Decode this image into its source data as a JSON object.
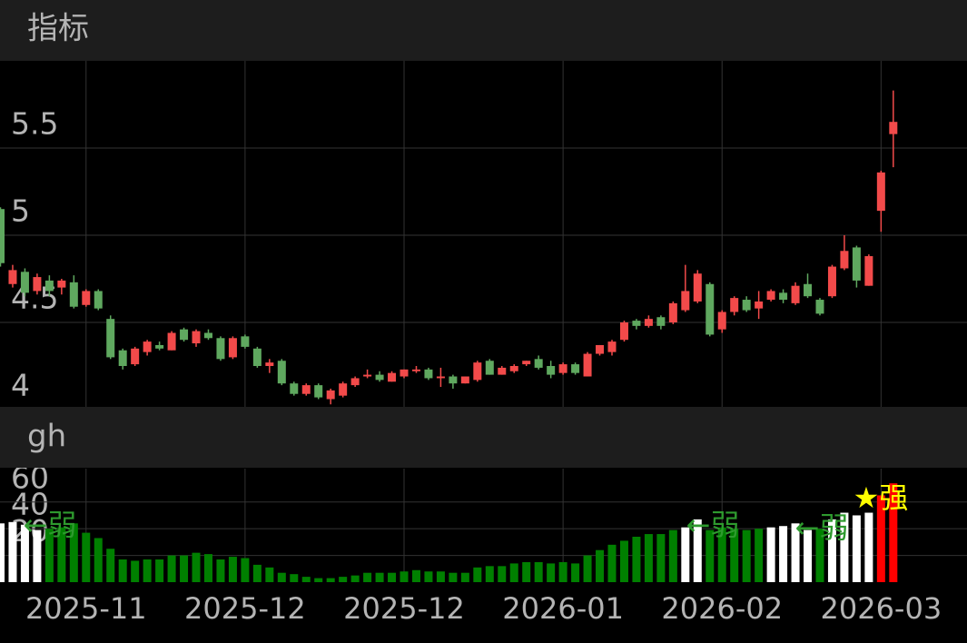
{
  "chart_data": [
    {
      "type": "candlestick",
      "title": "指标",
      "open": [
        5.15,
        4.72,
        4.79,
        4.68,
        4.74,
        4.7,
        4.73,
        4.6,
        4.68,
        4.52,
        4.34,
        4.26,
        4.33,
        4.37,
        4.34,
        4.46,
        4.38,
        4.44,
        4.41,
        4.3,
        4.42,
        4.35,
        4.25,
        4.28,
        4.15,
        4.09,
        4.14,
        4.06,
        4.08,
        4.14,
        4.19,
        4.2,
        4.16,
        4.19,
        4.22,
        4.23,
        4.18,
        4.19,
        4.15,
        4.17,
        4.28,
        4.2,
        4.22,
        4.26,
        4.29,
        4.25,
        4.21,
        4.26,
        4.19,
        4.32,
        4.33,
        4.4,
        4.51,
        4.48,
        4.53,
        4.5,
        4.57,
        4.62,
        4.72,
        4.46,
        4.56,
        4.63,
        4.58,
        4.63,
        4.67,
        4.61,
        4.72,
        4.63,
        4.65,
        4.81,
        4.93,
        4.71,
        5.14,
        5.58
      ],
      "high": [
        5.16,
        4.83,
        4.81,
        4.78,
        4.77,
        4.75,
        4.77,
        4.69,
        4.69,
        4.54,
        4.35,
        4.36,
        4.4,
        4.39,
        4.45,
        4.47,
        4.46,
        4.46,
        4.42,
        4.42,
        4.43,
        4.36,
        4.29,
        4.29,
        4.16,
        4.15,
        4.15,
        4.12,
        4.16,
        4.19,
        4.23,
        4.22,
        4.22,
        4.23,
        4.25,
        4.24,
        4.24,
        4.2,
        4.19,
        4.28,
        4.29,
        4.25,
        4.26,
        4.28,
        4.31,
        4.28,
        4.27,
        4.27,
        4.33,
        4.37,
        4.4,
        4.51,
        4.52,
        4.54,
        4.54,
        4.62,
        4.83,
        4.8,
        4.73,
        4.57,
        4.65,
        4.65,
        4.68,
        4.69,
        4.69,
        4.73,
        4.78,
        4.64,
        4.83,
        5.0,
        4.94,
        4.89,
        5.37,
        5.83
      ],
      "low": [
        4.82,
        4.7,
        4.65,
        4.66,
        4.65,
        4.66,
        4.58,
        4.59,
        4.57,
        4.29,
        4.23,
        4.25,
        4.31,
        4.34,
        4.34,
        4.39,
        4.36,
        4.4,
        4.28,
        4.29,
        4.35,
        4.24,
        4.21,
        4.14,
        4.08,
        4.08,
        4.06,
        4.03,
        4.07,
        4.13,
        4.18,
        4.16,
        4.16,
        4.18,
        4.21,
        4.17,
        4.13,
        4.12,
        4.15,
        4.16,
        4.2,
        4.2,
        4.21,
        4.25,
        4.23,
        4.18,
        4.2,
        4.2,
        4.19,
        4.31,
        4.31,
        4.39,
        4.46,
        4.47,
        4.46,
        4.49,
        4.56,
        4.61,
        4.42,
        4.44,
        4.54,
        4.56,
        4.52,
        4.62,
        4.61,
        4.6,
        4.64,
        4.54,
        4.64,
        4.8,
        4.7,
        4.71,
        5.02,
        5.39
      ],
      "close": [
        4.84,
        4.8,
        4.67,
        4.76,
        4.68,
        4.74,
        4.59,
        4.68,
        4.58,
        4.3,
        4.25,
        4.35,
        4.39,
        4.35,
        4.44,
        4.4,
        4.45,
        4.41,
        4.29,
        4.41,
        4.36,
        4.25,
        4.27,
        4.15,
        4.09,
        4.14,
        4.07,
        4.11,
        4.15,
        4.18,
        4.2,
        4.17,
        4.21,
        4.23,
        4.23,
        4.18,
        4.19,
        4.15,
        4.19,
        4.27,
        4.2,
        4.24,
        4.25,
        4.28,
        4.24,
        4.2,
        4.26,
        4.21,
        4.32,
        4.37,
        4.39,
        4.5,
        4.48,
        4.52,
        4.48,
        4.61,
        4.68,
        4.78,
        4.43,
        4.56,
        4.64,
        4.57,
        4.62,
        4.68,
        4.63,
        4.71,
        4.65,
        4.55,
        4.82,
        4.91,
        4.74,
        4.88,
        5.36,
        5.65
      ],
      "up_color": "#f24a4a",
      "down_color": "#5fa85f",
      "ylim": [
        4,
        6
      ],
      "yticks": [
        4,
        4.5,
        5,
        5.5
      ],
      "grid": true
    },
    {
      "type": "bar",
      "title": "gh",
      "categories": [
        null,
        null,
        null,
        null,
        null,
        null,
        null,
        "2025-11",
        null,
        null,
        null,
        null,
        null,
        null,
        null,
        null,
        null,
        null,
        null,
        null,
        "2025-12",
        null,
        null,
        null,
        null,
        null,
        null,
        null,
        null,
        null,
        null,
        null,
        null,
        "2025-12",
        null,
        null,
        null,
        null,
        null,
        null,
        null,
        null,
        null,
        null,
        null,
        null,
        "2026-01",
        null,
        null,
        null,
        null,
        null,
        null,
        null,
        null,
        null,
        null,
        null,
        null,
        "2026-02",
        null,
        null,
        null,
        null,
        null,
        null,
        null,
        null,
        null,
        null,
        null,
        null,
        "2026-03",
        null
      ],
      "values": [
        44,
        45,
        43,
        39,
        40,
        41,
        44,
        37,
        33,
        25,
        17,
        16,
        17,
        17,
        20,
        20,
        22,
        21,
        17,
        19,
        18,
        13,
        11,
        7,
        6,
        4,
        3,
        3,
        4,
        5,
        7,
        7,
        7,
        8,
        9,
        8,
        8,
        7,
        7,
        11,
        12,
        12,
        14,
        15,
        15,
        14,
        15,
        14,
        20,
        24,
        28,
        31,
        34,
        36,
        36,
        39,
        41,
        47,
        39,
        41,
        40,
        39,
        40,
        41,
        42,
        44,
        39,
        40,
        47,
        52,
        50,
        52,
        65,
        74
      ],
      "colors": [
        "#ffffff",
        "#ffffff",
        "#ffffff",
        "#ffffff",
        "#008000",
        "#008000",
        "#008000",
        "#008000",
        "#008000",
        "#008000",
        "#008000",
        "#008000",
        "#008000",
        "#008000",
        "#008000",
        "#008000",
        "#008000",
        "#008000",
        "#008000",
        "#008000",
        "#008000",
        "#008000",
        "#008000",
        "#008000",
        "#008000",
        "#008000",
        "#008000",
        "#008000",
        "#008000",
        "#008000",
        "#008000",
        "#008000",
        "#008000",
        "#008000",
        "#008000",
        "#008000",
        "#008000",
        "#008000",
        "#008000",
        "#008000",
        "#008000",
        "#008000",
        "#008000",
        "#008000",
        "#008000",
        "#008000",
        "#008000",
        "#008000",
        "#008000",
        "#008000",
        "#008000",
        "#008000",
        "#008000",
        "#008000",
        "#008000",
        "#008000",
        "#ffffff",
        "#ffffff",
        "#008000",
        "#008000",
        "#008000",
        "#008000",
        "#008000",
        "#ffffff",
        "#ffffff",
        "#ffffff",
        "#ffffff",
        "#008000",
        "#ffffff",
        "#ffffff",
        "#ffffff",
        "#ffffff",
        "#ff0000",
        "#ff0000"
      ],
      "annotations": [
        {
          "text": "←弱",
          "color": "#2e9a2e"
        },
        {
          "text": "←弱",
          "color": "#2e9a2e"
        },
        {
          "text": "←弱",
          "color": "#2e9a2e"
        },
        {
          "text": "★强",
          "color": "#ffff00"
        }
      ],
      "ylim": [
        0,
        85
      ],
      "yticks": [
        20,
        40,
        60
      ],
      "grid": true
    }
  ]
}
